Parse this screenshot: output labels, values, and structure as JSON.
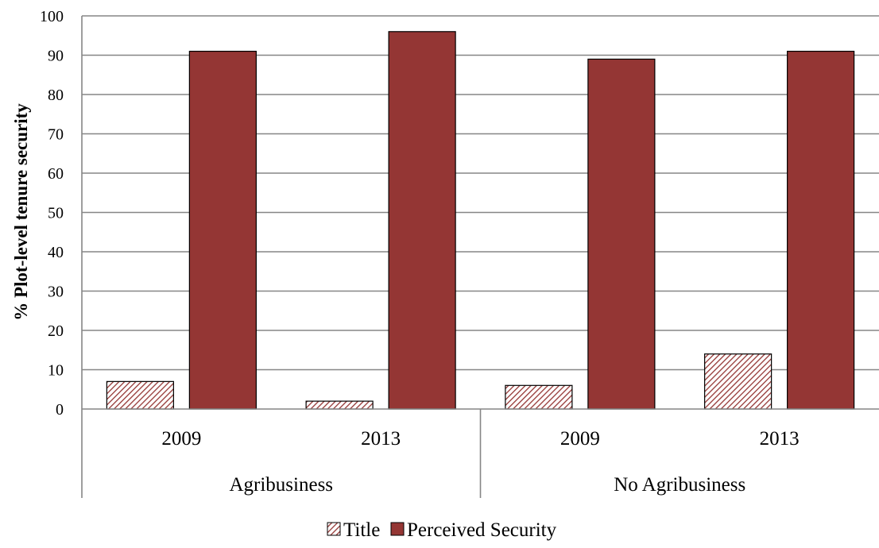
{
  "chart_data": {
    "type": "bar",
    "title": "",
    "ylabel": "% Plot-level tenure security",
    "xlabel": "",
    "ylim": [
      0,
      100
    ],
    "yticks": [
      0,
      10,
      20,
      30,
      40,
      50,
      60,
      70,
      80,
      90,
      100
    ],
    "grid": "horizontal",
    "legend_position": "bottom",
    "groups": [
      {
        "label": "Agribusiness",
        "categories": [
          "2009",
          "2013"
        ]
      },
      {
        "label": "No  Agribusiness",
        "categories": [
          "2009",
          "2013"
        ]
      }
    ],
    "categories": [
      "2009",
      "2013",
      "2009",
      "2013"
    ],
    "series": [
      {
        "name": "Title",
        "values": [
          7,
          2,
          6,
          14
        ],
        "style": "hatched",
        "color": "#943634"
      },
      {
        "name": "Perceived Security",
        "values": [
          91,
          96,
          89,
          91
        ],
        "style": "solid",
        "color": "#943634"
      }
    ]
  }
}
